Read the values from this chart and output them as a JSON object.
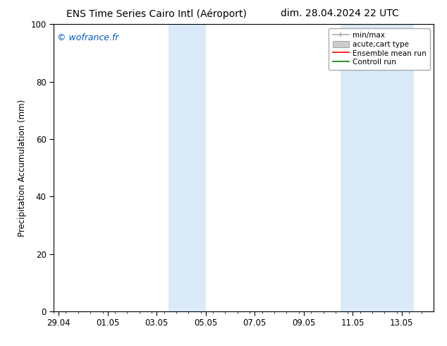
{
  "title_left": "ENS Time Series Cairo Intl (Aéroport)",
  "title_right": "dim. 28.04.2024 22 UTC",
  "ylabel": "Precipitation Accumulation (mm)",
  "watermark": "© wofrance.fr",
  "watermark_color": "#0055cc",
  "ylim": [
    0,
    100
  ],
  "yticks": [
    0,
    20,
    40,
    60,
    80,
    100
  ],
  "background_color": "#ffffff",
  "plot_bg_color": "#ffffff",
  "xtick_labels": [
    "29.04",
    "01.05",
    "03.05",
    "05.05",
    "07.05",
    "09.05",
    "11.05",
    "13.05"
  ],
  "xtick_positions": [
    0,
    2,
    4,
    6,
    8,
    10,
    12,
    14
  ],
  "xlim": [
    -0.2,
    15.3
  ],
  "shaded_regions": [
    {
      "x_start": 4.5,
      "x_end": 6.0,
      "color": "#daeaf8"
    },
    {
      "x_start": 11.5,
      "x_end": 14.5,
      "color": "#daeaf8"
    }
  ],
  "spine_color": "#000000",
  "tick_color": "#000000",
  "legend_minmax_color": "#aaaaaa",
  "legend_acute_color": "#cccccc",
  "legend_ensemble_color": "#ff0000",
  "legend_controll_color": "#008000"
}
